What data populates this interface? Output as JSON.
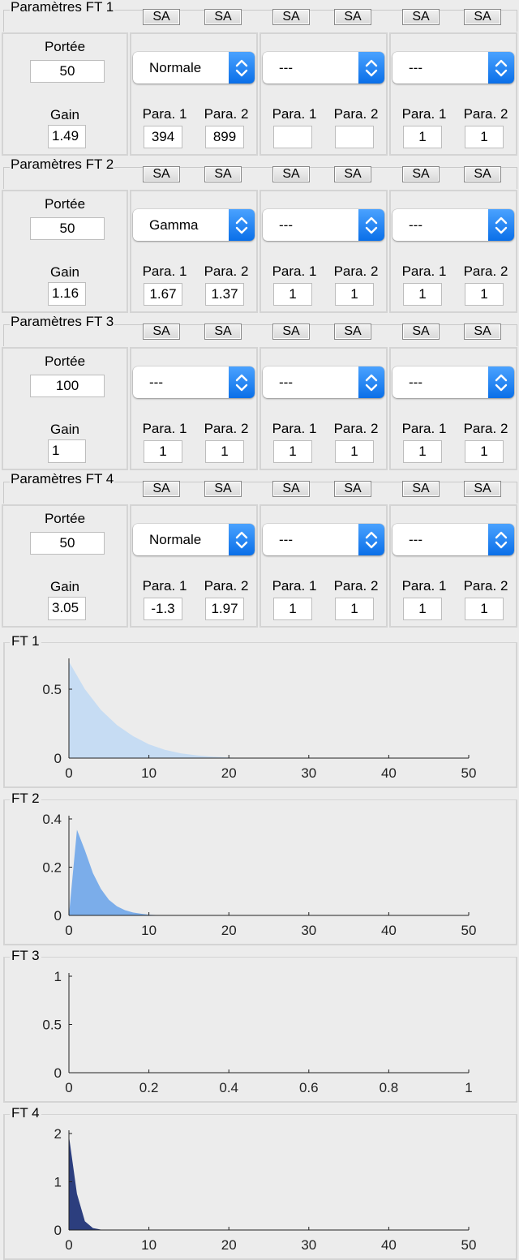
{
  "panels": [
    {
      "title": "Paramètres FT 1",
      "sa": [
        "SA",
        "SA",
        "SA",
        "SA",
        "SA",
        "SA"
      ],
      "portee_label": "Portée",
      "portee_value": "50",
      "gain_label": "Gain",
      "gain_value": "1.49",
      "dists": [
        {
          "selected": "Normale",
          "p1_label": "Para. 1",
          "p2_label": "Para. 2",
          "p1": "394",
          "p2": "899"
        },
        {
          "selected": "---",
          "p1_label": "Para. 1",
          "p2_label": "Para. 2",
          "p1": "",
          "p2": ""
        },
        {
          "selected": "---",
          "p1_label": "Para. 1",
          "p2_label": "Para. 2",
          "p1": "1",
          "p2": "1"
        }
      ]
    },
    {
      "title": "Paramètres FT 2",
      "sa": [
        "SA",
        "SA",
        "SA",
        "SA",
        "SA",
        "SA"
      ],
      "portee_label": "Portée",
      "portee_value": "50",
      "gain_label": "Gain",
      "gain_value": "1.16",
      "dists": [
        {
          "selected": "Gamma",
          "p1_label": "Para. 1",
          "p2_label": "Para. 2",
          "p1": "1.67",
          "p2": "1.37"
        },
        {
          "selected": "---",
          "p1_label": "Para. 1",
          "p2_label": "Para. 2",
          "p1": "1",
          "p2": "1"
        },
        {
          "selected": "---",
          "p1_label": "Para. 1",
          "p2_label": "Para. 2",
          "p1": "1",
          "p2": "1"
        }
      ]
    },
    {
      "title": "Paramètres FT 3",
      "sa": [
        "SA",
        "SA",
        "SA",
        "SA",
        "SA",
        "SA"
      ],
      "portee_label": "Portée",
      "portee_value": "100",
      "gain_label": "Gain",
      "gain_value": "1",
      "dists": [
        {
          "selected": "---",
          "p1_label": "Para. 1",
          "p2_label": "Para. 2",
          "p1": "1",
          "p2": "1"
        },
        {
          "selected": "---",
          "p1_label": "Para. 1",
          "p2_label": "Para. 2",
          "p1": "1",
          "p2": "1"
        },
        {
          "selected": "---",
          "p1_label": "Para. 1",
          "p2_label": "Para. 2",
          "p1": "1",
          "p2": "1"
        }
      ]
    },
    {
      "title": "Paramètres FT 4",
      "sa": [
        "SA",
        "SA",
        "SA",
        "SA",
        "SA",
        "SA"
      ],
      "portee_label": "Portée",
      "portee_value": "50",
      "gain_label": "Gain",
      "gain_value": "3.05",
      "dists": [
        {
          "selected": "Normale",
          "p1_label": "Para. 1",
          "p2_label": "Para. 2",
          "p1": "-1.3",
          "p2": "1.97"
        },
        {
          "selected": "---",
          "p1_label": "Para. 1",
          "p2_label": "Para. 2",
          "p1": "1",
          "p2": "1"
        },
        {
          "selected": "---",
          "p1_label": "Para. 1",
          "p2_label": "Para. 2",
          "p1": "1",
          "p2": "1"
        }
      ]
    }
  ],
  "chart_data": [
    {
      "type": "area",
      "title": "FT 1",
      "color": "#c6dcf3",
      "xlim": [
        0,
        50
      ],
      "ylim": [
        0,
        0.7
      ],
      "xticks": [
        0,
        10,
        20,
        30,
        40,
        50
      ],
      "yticks": [
        0,
        0.5
      ],
      "x": [
        0,
        2,
        4,
        6,
        8,
        10,
        12,
        14,
        16,
        18,
        20,
        22,
        50
      ],
      "y": [
        0.7,
        0.5,
        0.35,
        0.24,
        0.16,
        0.1,
        0.06,
        0.035,
        0.02,
        0.01,
        0.004,
        0,
        0
      ]
    },
    {
      "type": "area",
      "title": "FT 2",
      "color": "#7badea",
      "xlim": [
        0,
        50
      ],
      "ylim": [
        0,
        0.4
      ],
      "xticks": [
        0,
        10,
        20,
        30,
        40,
        50
      ],
      "yticks": [
        0,
        0.2,
        0.4
      ],
      "x": [
        0,
        1,
        2,
        3,
        4,
        5,
        6,
        7,
        8,
        9,
        10,
        12,
        50
      ],
      "y": [
        0,
        0.355,
        0.27,
        0.175,
        0.11,
        0.065,
        0.038,
        0.022,
        0.012,
        0.007,
        0.003,
        0,
        0
      ]
    },
    {
      "type": "area",
      "title": "FT 3",
      "color": "#7badea",
      "xlim": [
        0,
        1
      ],
      "ylim": [
        0,
        1
      ],
      "xticks": [
        0,
        0.2,
        0.4,
        0.6,
        0.8,
        1
      ],
      "yticks": [
        0,
        0.5,
        1
      ],
      "x": [],
      "y": []
    },
    {
      "type": "area",
      "title": "FT 4",
      "color": "#2c3e7e",
      "xlim": [
        0,
        50
      ],
      "ylim": [
        0,
        2
      ],
      "xticks": [
        0,
        10,
        20,
        30,
        40,
        50
      ],
      "yticks": [
        0,
        1,
        2
      ],
      "x": [
        0,
        1,
        2,
        3,
        4,
        5,
        50
      ],
      "y": [
        1.95,
        0.75,
        0.18,
        0.04,
        0.008,
        0,
        0
      ]
    }
  ]
}
